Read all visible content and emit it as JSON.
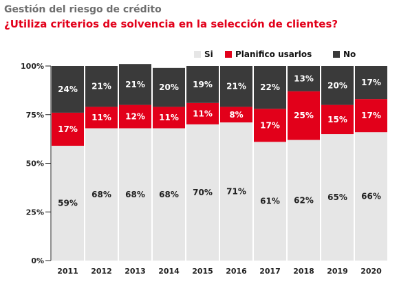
{
  "title": "Gestión del riesgo de crédito",
  "subtitle": "¿Utiliza criterios de solvencia en la selección de clientes?",
  "chart_data": {
    "type": "bar",
    "stacked": true,
    "categories": [
      "2011",
      "2012",
      "2013",
      "2014",
      "2015",
      "2016",
      "2017",
      "2018",
      "2019",
      "2020"
    ],
    "series": [
      {
        "name": "Si",
        "color": "#e6e6e6",
        "label_color": "#222222",
        "values": [
          59,
          68,
          68,
          68,
          70,
          71,
          61,
          62,
          65,
          66
        ]
      },
      {
        "name": "Planifico usarlos",
        "color": "#e2001a",
        "label_color": "#ffffff",
        "values": [
          17,
          11,
          12,
          11,
          11,
          8,
          17,
          25,
          15,
          17
        ]
      },
      {
        "name": "No",
        "color": "#3a3a3a",
        "label_color": "#ffffff",
        "values": [
          24,
          21,
          21,
          20,
          19,
          21,
          22,
          13,
          20,
          17
        ]
      }
    ],
    "ylim": [
      0,
      100
    ],
    "yticks": [
      "0%",
      "25%",
      "50%",
      "75%",
      "100%"
    ],
    "legend_position": "top-right",
    "value_suffix": "%"
  }
}
